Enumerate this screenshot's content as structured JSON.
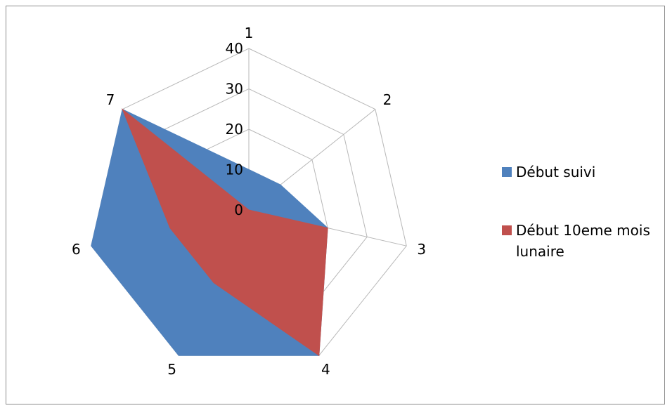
{
  "chart_data": {
    "type": "radar",
    "categories": [
      "1",
      "2",
      "3",
      "4",
      "5",
      "6",
      "7"
    ],
    "rlim": [
      0,
      40
    ],
    "rticks": [
      0,
      10,
      20,
      30,
      40
    ],
    "grid": true,
    "legend_position": "right",
    "series": [
      {
        "name": "Début suivi",
        "color": "#4F81BD",
        "values": [
          10,
          10,
          20,
          40,
          40,
          40,
          40
        ]
      },
      {
        "name": "Début 10eme mois lunaire",
        "color": "#C0504D",
        "values": [
          0,
          0,
          20,
          40,
          20,
          20,
          40
        ]
      }
    ]
  },
  "legend": {
    "item1_line1": "Début suivi",
    "item2_line1": "Début 10eme mois",
    "item2_line2": "lunaire"
  }
}
